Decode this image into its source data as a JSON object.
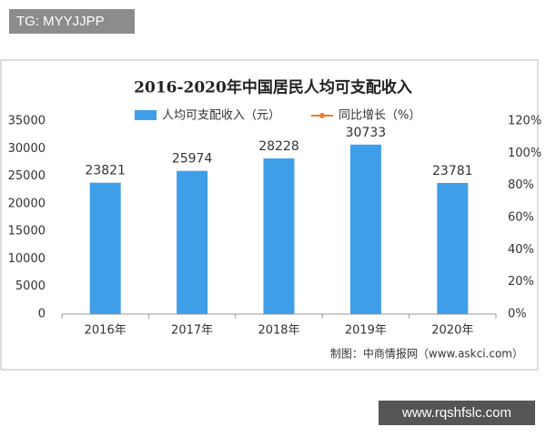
{
  "top_label": "TG: MYYJJPP",
  "bottom_label": "www.rqshfslc.com",
  "chart_data": {
    "type": "bar",
    "title": "2016-2020年中国居民人均可支配收入",
    "source": "制图：中商情报网（www.askci.com）",
    "categories": [
      "2016年",
      "2017年",
      "2018年",
      "2019年",
      "2020年"
    ],
    "series": [
      {
        "name": "人均可支配收入（元）",
        "color": "#3f9ee8",
        "values": [
          23821,
          25974,
          28228,
          30733,
          23781
        ]
      },
      {
        "name": "同比增长（%）",
        "color": "#ed7d31",
        "axis": "y2",
        "values": [
          null,
          null,
          null,
          null,
          null
        ]
      }
    ],
    "ylim": [
      0,
      35000
    ],
    "yticks": [
      0,
      5000,
      10000,
      15000,
      20000,
      25000,
      30000,
      35000
    ],
    "y2lim": [
      0,
      120
    ],
    "y2ticks": [
      {
        "value": 0,
        "label": "0%"
      },
      {
        "value": 20,
        "label": "20%"
      },
      {
        "value": 40,
        "label": "40%"
      },
      {
        "value": 60,
        "label": "60%"
      },
      {
        "value": 80,
        "label": "80%"
      },
      {
        "value": 100,
        "label": "100%"
      },
      {
        "value": 120,
        "label": "120%"
      }
    ],
    "grid": false
  }
}
